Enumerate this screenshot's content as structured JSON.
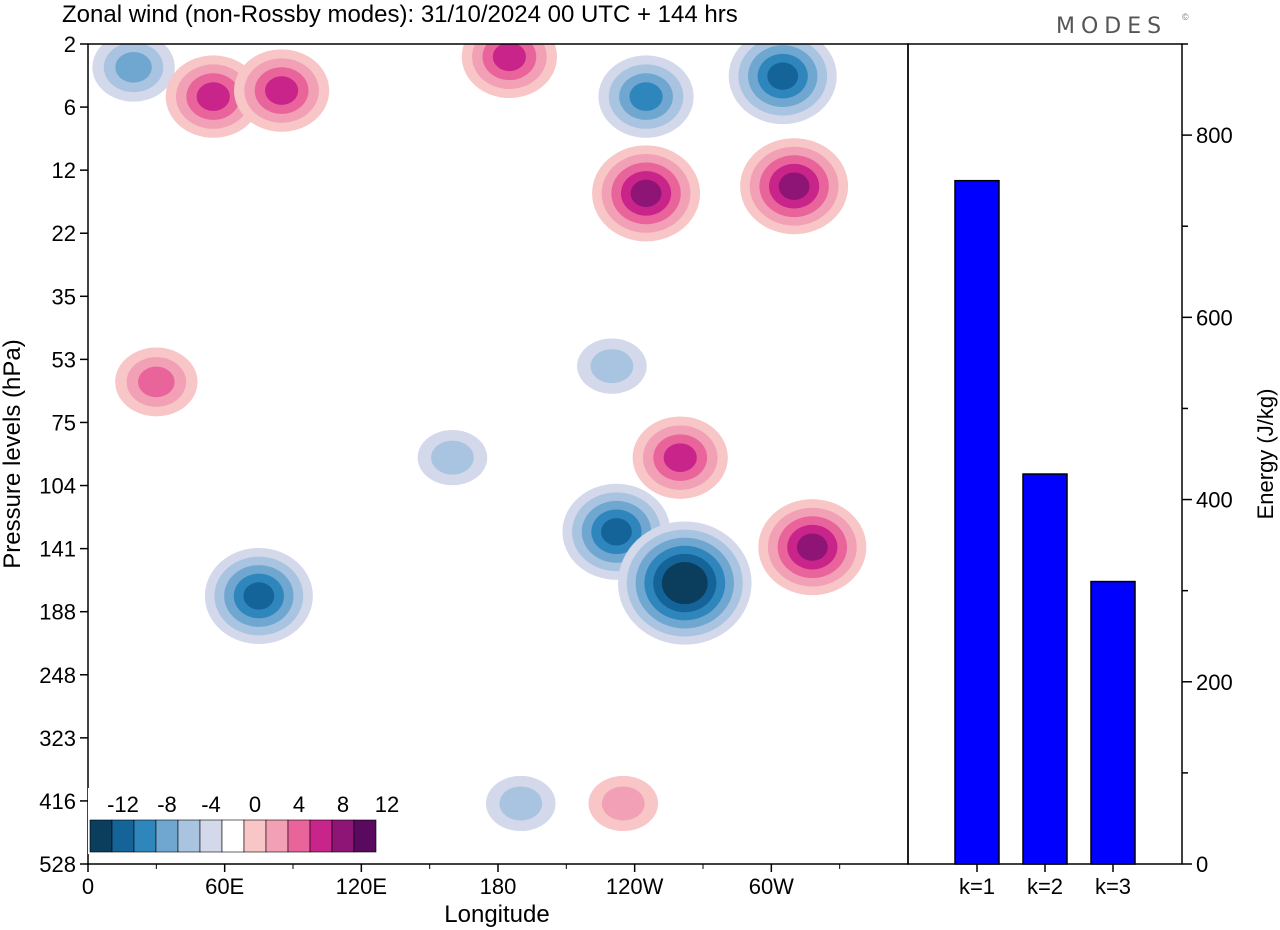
{
  "title": "Zonal wind (non-Rossby modes):  31/10/2024  00 UTC  + 144 hrs",
  "logo": "MODES",
  "logo_mark": "©",
  "chart_data": [
    {
      "type": "heatmap",
      "xlabel": "Longitude",
      "ylabel": "Pressure levels (hPa)",
      "x_ticks": [
        "0",
        "60E",
        "120E",
        "180",
        "120W",
        "60W"
      ],
      "y_ticks": [
        "2",
        "6",
        "12",
        "22",
        "35",
        "53",
        "75",
        "104",
        "141",
        "188",
        "248",
        "323",
        "416",
        "528"
      ],
      "y_scale": "reversed",
      "colorbar": {
        "labels": [
          "-12",
          "-8",
          "-4",
          "0",
          "4",
          "8",
          "12"
        ],
        "levels": [
          -14,
          -12,
          -10,
          -8,
          -6,
          -4,
          -2,
          2,
          4,
          6,
          8,
          10,
          12,
          14
        ],
        "colors": [
          "#0b3d5c",
          "#14649a",
          "#2f86bd",
          "#6fa7d1",
          "#a9c4e0",
          "#d3d8ea",
          "#ffffff",
          "#f8c6c6",
          "#f2a0b5",
          "#e8649a",
          "#c8248a",
          "#8e1476",
          "#5a0a5e"
        ]
      },
      "features": [
        {
          "sign": "neg",
          "lon": 20,
          "level": 3,
          "max": 6
        },
        {
          "sign": "pos",
          "lon": 55,
          "level": 5,
          "max": 8
        },
        {
          "sign": "pos",
          "lon": 85,
          "level": 4.5,
          "max": 8
        },
        {
          "sign": "pos",
          "lon": 185,
          "level": 2.5,
          "max": 8
        },
        {
          "sign": "neg",
          "lon": 245,
          "level": 5,
          "max": 8
        },
        {
          "sign": "neg",
          "lon": 305,
          "level": 3.5,
          "max": 10
        },
        {
          "sign": "pos",
          "lon": 245,
          "level": 15,
          "max": 10
        },
        {
          "sign": "pos",
          "lon": 310,
          "level": 14,
          "max": 10
        },
        {
          "sign": "pos",
          "lon": 30,
          "level": 60,
          "max": 6
        },
        {
          "sign": "neg",
          "lon": 160,
          "level": 90,
          "max": 4
        },
        {
          "sign": "neg",
          "lon": 230,
          "level": 55,
          "max": 4
        },
        {
          "sign": "neg",
          "lon": 75,
          "level": 175,
          "max": 10
        },
        {
          "sign": "neg",
          "lon": 232,
          "level": 130,
          "max": 10
        },
        {
          "sign": "pos",
          "lon": 260,
          "level": 90,
          "max": 8
        },
        {
          "sign": "neg",
          "lon": 262,
          "level": 165,
          "max": 14
        },
        {
          "sign": "pos",
          "lon": 318,
          "level": 140,
          "max": 10
        },
        {
          "sign": "pos",
          "lon": 235,
          "level": 420,
          "max": 4
        },
        {
          "sign": "neg",
          "lon": 190,
          "level": 420,
          "max": 4
        }
      ]
    },
    {
      "type": "bar",
      "categories": [
        "k=1",
        "k=2",
        "k=3"
      ],
      "values": [
        750,
        428,
        310
      ],
      "ylabel": "Energy (J/kg)",
      "ylim": [
        0,
        900
      ],
      "y_ticks": [
        0,
        200,
        400,
        600,
        800
      ],
      "color": "#0000ff"
    }
  ]
}
